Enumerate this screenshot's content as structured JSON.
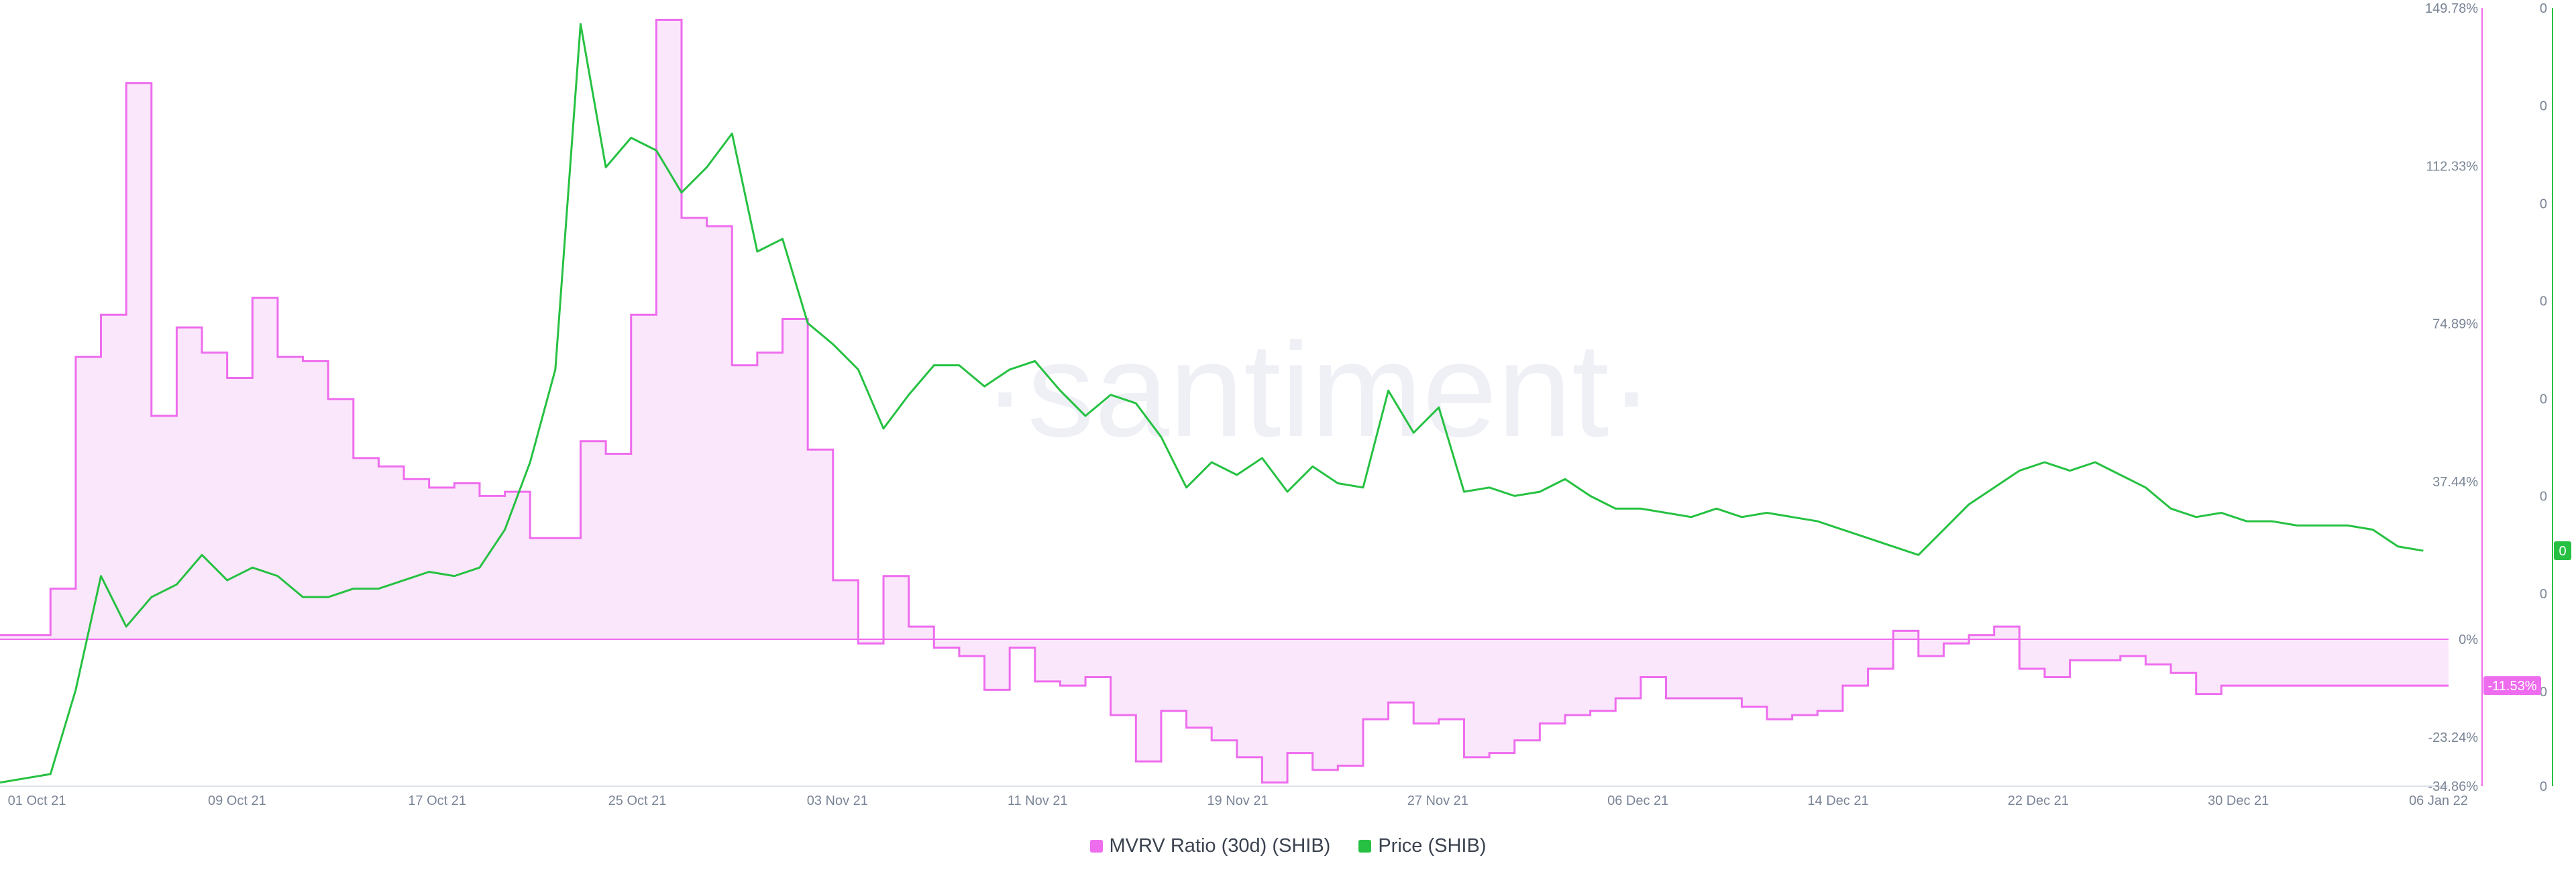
{
  "chart_data": {
    "type": "line",
    "title": "",
    "watermark": "·santiment·",
    "x_ticks": [
      "01 Oct 21",
      "09 Oct 21",
      "17 Oct 21",
      "25 Oct 21",
      "03 Nov 21",
      "11 Nov 21",
      "19 Nov 21",
      "27 Nov 21",
      "06 Dec 21",
      "14 Dec 21",
      "22 Dec 21",
      "30 Dec 21",
      "06 Jan 22"
    ],
    "xlim": [
      0,
      97
    ],
    "mvrv_axis": {
      "ylim": [
        -34.86,
        149.78
      ],
      "ticks": [
        "149.78%",
        "112.33%",
        "74.89%",
        "37.44%",
        "0%",
        "-23.24%",
        "-34.86%"
      ],
      "tick_values": [
        149.78,
        112.33,
        74.89,
        37.44,
        0,
        -23.24,
        -34.86
      ]
    },
    "price_axis": {
      "ticks": [
        "0",
        "0",
        "0",
        "0",
        "0",
        "0",
        "0",
        "0",
        "0"
      ],
      "tick_values": [
        149.78,
        126.6,
        103.4,
        80.3,
        57.1,
        34.0,
        10.8,
        -12.4,
        -34.86
      ]
    },
    "series": [
      {
        "name": "MVRV Ratio (30d) (SHIB)",
        "color": "#ee6cee",
        "fill": "#fbe7fb",
        "style": "step-area",
        "x": [
          0,
          1,
          2,
          3,
          4,
          5,
          6,
          7,
          8,
          9,
          10,
          11,
          12,
          13,
          14,
          15,
          16,
          17,
          18,
          19,
          20,
          21,
          22,
          23,
          24,
          25,
          26,
          27,
          28,
          29,
          30,
          31,
          32,
          33,
          34,
          35,
          36,
          37,
          38,
          39,
          40,
          41,
          42,
          43,
          44,
          45,
          46,
          47,
          48,
          49,
          50,
          51,
          52,
          53,
          54,
          55,
          56,
          57,
          58,
          59,
          60,
          61,
          62,
          63,
          64,
          65,
          66,
          67,
          68,
          69,
          70,
          71,
          72,
          73,
          74,
          75,
          76,
          77,
          78,
          79,
          80,
          81,
          82,
          83,
          84,
          85,
          86,
          87,
          88,
          89,
          90,
          91,
          92,
          93,
          94,
          95,
          96
        ],
        "values": [
          1,
          1,
          12,
          67,
          77,
          132,
          53,
          74,
          68,
          62,
          81,
          67,
          66,
          57,
          43,
          41,
          38,
          36,
          37,
          34,
          35,
          24,
          24,
          47,
          44,
          77,
          147,
          100,
          98,
          65,
          68,
          76,
          45,
          14,
          -1,
          15,
          3,
          -2,
          -4,
          -12,
          -2,
          -10,
          -11,
          -9,
          -18,
          -29,
          -17,
          -21,
          -24,
          -28,
          -34,
          -27,
          -31,
          -30,
          -19,
          -15,
          -20,
          -19,
          -28,
          -27,
          -24,
          -20,
          -18,
          -17,
          -14,
          -9,
          -14,
          -14,
          -14,
          -16,
          -19,
          -18,
          -17,
          -11,
          -7,
          2,
          -4,
          -1,
          1,
          3,
          -7,
          -9,
          -5,
          -5,
          -4,
          -6,
          -8,
          -13,
          -11,
          -11,
          -11,
          -11,
          -11,
          -11,
          -11,
          -11,
          -11
        ],
        "last_value_label": "-11.53%"
      },
      {
        "name": "Price (SHIB)",
        "color": "#26c142",
        "style": "line",
        "x": [
          0,
          1,
          2,
          3,
          4,
          5,
          6,
          7,
          8,
          9,
          10,
          11,
          12,
          13,
          14,
          15,
          16,
          17,
          18,
          19,
          20,
          21,
          22,
          23,
          24,
          25,
          26,
          27,
          28,
          29,
          30,
          31,
          32,
          33,
          34,
          35,
          36,
          37,
          38,
          39,
          40,
          41,
          42,
          43,
          44,
          45,
          46,
          47,
          48,
          49,
          50,
          51,
          52,
          53,
          54,
          55,
          56,
          57,
          58,
          59,
          60,
          61,
          62,
          63,
          64,
          65,
          66,
          67,
          68,
          69,
          70,
          71,
          72,
          73,
          74,
          75,
          76,
          77,
          78,
          79,
          80,
          81,
          82,
          83,
          84,
          85,
          86,
          87,
          88,
          89,
          90,
          91,
          92,
          93,
          94,
          95,
          96
        ],
        "values": [
          -34,
          -33,
          -32,
          -12,
          15,
          3,
          10,
          13,
          20,
          14,
          17,
          15,
          10,
          10,
          12,
          12,
          14,
          16,
          15,
          17,
          26,
          42,
          64,
          146,
          112,
          119,
          116,
          106,
          112,
          120,
          92,
          95,
          75,
          70,
          64,
          50,
          58,
          65,
          65,
          60,
          64,
          66,
          59,
          53,
          58,
          56,
          48,
          36,
          42,
          39,
          43,
          35,
          41,
          37,
          36,
          59,
          49,
          55,
          35,
          36,
          34,
          35,
          38,
          34,
          31,
          31,
          30,
          29,
          31,
          29,
          30,
          29,
          28,
          26,
          24,
          22,
          20,
          26,
          32,
          36,
          40,
          42,
          40,
          42,
          39,
          36,
          31,
          29,
          30,
          28,
          28,
          27,
          27,
          27,
          26,
          22,
          21
        ],
        "last_value_label": "0"
      }
    ],
    "legend": [
      {
        "label": "MVRV Ratio (30d) (SHIB)",
        "color": "#ee6cee"
      },
      {
        "label": "Price (SHIB)",
        "color": "#26c142"
      }
    ],
    "legend_position": "bottom-center",
    "grid": false
  }
}
